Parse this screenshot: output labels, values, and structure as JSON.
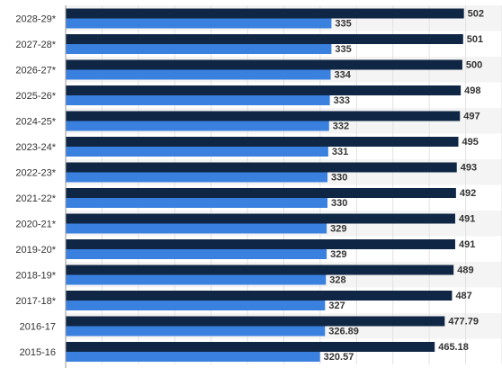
{
  "chart_data": {
    "type": "bar",
    "orientation": "horizontal",
    "categories": [
      "2028-29*",
      "2027-28*",
      "2026-27*",
      "2025-26*",
      "2024-25*",
      "2023-24*",
      "2022-23*",
      "2021-22*",
      "2020-21*",
      "2019-20*",
      "2018-19*",
      "2017-18*",
      "2016-17",
      "2015-16"
    ],
    "series": [
      {
        "color": "#0f2644",
        "values": [
          502,
          501,
          500,
          498,
          497,
          495,
          493,
          492,
          491,
          491,
          489,
          487,
          477.79,
          465.18
        ],
        "labels": [
          "502",
          "501",
          "500",
          "498",
          "497",
          "495",
          "493",
          "492",
          "491",
          "491",
          "489",
          "487",
          "477.79",
          "465.18"
        ]
      },
      {
        "color": "#3a80de",
        "values": [
          335,
          335,
          334,
          333,
          332,
          331,
          330,
          330,
          329,
          329,
          328,
          327,
          326.89,
          320.57
        ],
        "labels": [
          "335",
          "335",
          "334",
          "333",
          "332",
          "331",
          "330",
          "330",
          "329",
          "329",
          "328",
          "327",
          "326.89",
          "320.57"
        ]
      }
    ],
    "xlim": [
      0,
      550
    ],
    "grid": true,
    "legend": "none",
    "title": "",
    "xlabel": "",
    "ylabel": ""
  }
}
